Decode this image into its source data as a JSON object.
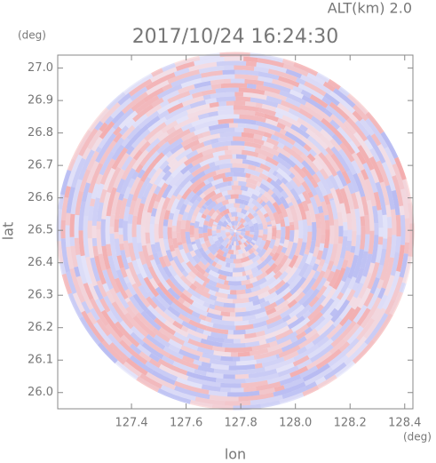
{
  "chart_data": {
    "type": "radar-image",
    "title": "2017/10/24 16:24:30",
    "annotation": "ALT(km) 2.0",
    "x_label": "lon",
    "y_label": "lat",
    "x_unit": "(deg)",
    "y_unit": "(deg)",
    "xlim": [
      127.13,
      128.43
    ],
    "ylim": [
      25.95,
      27.04
    ],
    "xticks": [
      127.4,
      127.6,
      127.8,
      {
        "value": 128.0,
        "label": "128.0"
      },
      128.2,
      128.4
    ],
    "yticks": [
      {
        "value": 26.0,
        "label": "26.0"
      },
      26.1,
      26.2,
      26.3,
      26.4,
      26.5,
      26.6,
      26.7,
      26.8,
      26.9,
      {
        "value": 27.0,
        "label": "27.0"
      }
    ]
  }
}
